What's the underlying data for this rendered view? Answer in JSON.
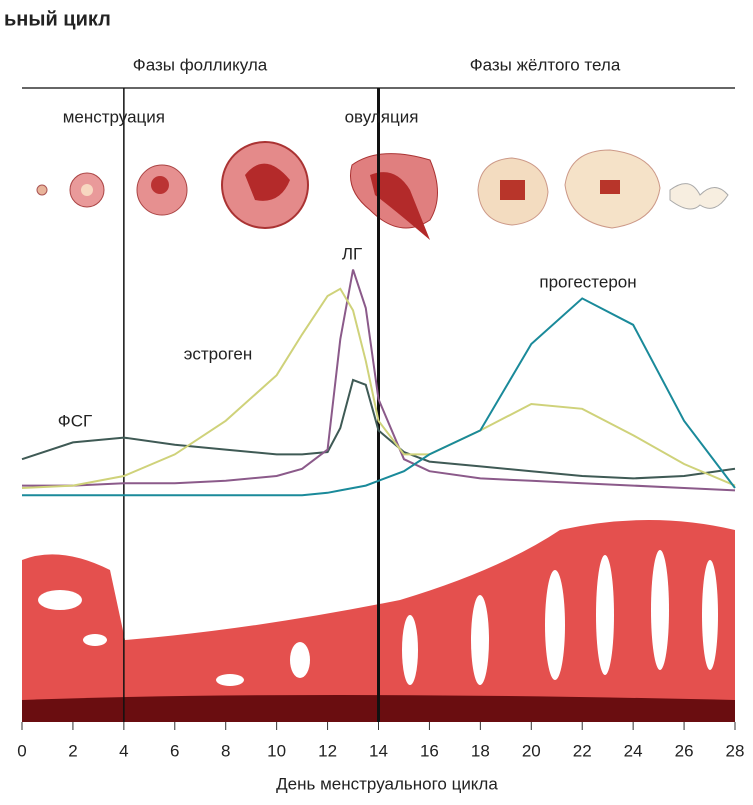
{
  "chart_data": {
    "type": "line",
    "title": "ьный цикл",
    "phases": [
      "Фазы фолликула",
      "Фазы жёлтого тела"
    ],
    "annotations": [
      {
        "x": 4,
        "text": "менструация"
      },
      {
        "x": 14,
        "text": "овуляция"
      }
    ],
    "x_label": "День менструального цикла",
    "x": [
      0,
      2,
      4,
      6,
      8,
      10,
      11,
      12,
      12.5,
      13,
      13.5,
      14,
      15,
      16,
      18,
      20,
      22,
      24,
      26,
      28
    ],
    "xlim": [
      0,
      28
    ],
    "xticks": [
      0,
      2,
      4,
      6,
      8,
      10,
      12,
      14,
      16,
      18,
      20,
      22,
      24,
      26,
      28
    ],
    "ylim": [
      0,
      100
    ],
    "series": [
      {
        "name": "ФСГ",
        "color": "#3f5a55",
        "values": [
          17,
          24,
          26,
          23,
          21,
          19,
          19,
          20,
          30,
          50,
          48,
          29,
          20,
          16,
          14,
          12,
          10,
          9,
          10,
          13
        ]
      },
      {
        "name": "ЛГ",
        "color": "#8b5a8a",
        "values": [
          6,
          6,
          7,
          7,
          8,
          10,
          13,
          21,
          67,
          96,
          80,
          42,
          17,
          12,
          9,
          8,
          7,
          6,
          5,
          4
        ]
      },
      {
        "name": "эстроген",
        "color": "#cfd27a",
        "values": [
          5,
          6,
          10,
          19,
          33,
          52,
          69,
          85,
          88,
          79,
          58,
          33,
          19,
          19,
          29,
          40,
          38,
          27,
          15,
          6
        ]
      },
      {
        "name": "прогестерон",
        "color": "#1a8a9a",
        "values": [
          2,
          2,
          2,
          2,
          2,
          2,
          2,
          3,
          4,
          5,
          6,
          8,
          12,
          19,
          29,
          65,
          84,
          73,
          33,
          5
        ]
      }
    ]
  }
}
